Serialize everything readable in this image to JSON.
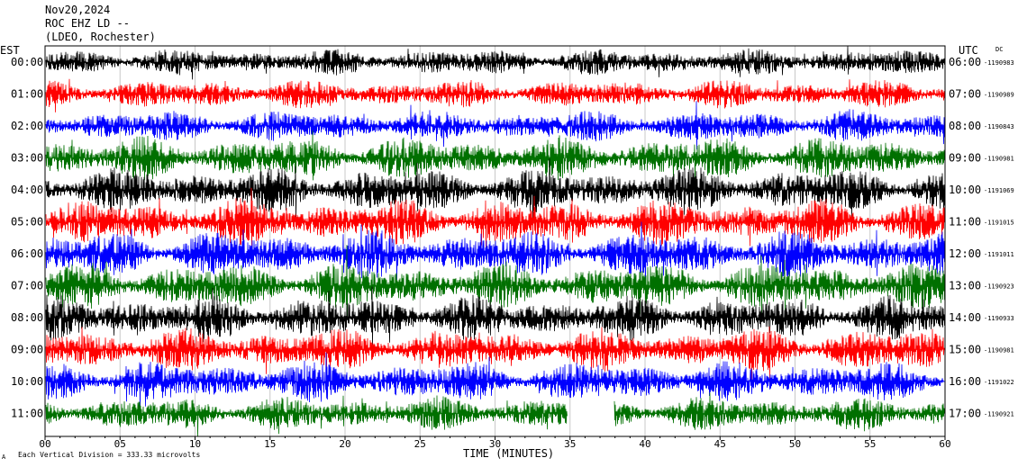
{
  "header": {
    "date": "Nov20,2024",
    "station": "ROC EHZ LD --",
    "network": "(LDEO, Rochester)"
  },
  "chart_data": {
    "type": "line",
    "title": "Nov20,2024",
    "left_timezone_label": "EST",
    "right_timezone_label": "UTC",
    "dc_label": "DC",
    "xlabel": "TIME (MINUTES)",
    "xlim": [
      0,
      60
    ],
    "x_ticks": [
      "00",
      "05",
      "10",
      "15",
      "20",
      "25",
      "30",
      "35",
      "40",
      "45",
      "50",
      "55",
      "60"
    ],
    "footer_note": "Each Vertical Division =  333.33 microvolts",
    "footer_mark": "A",
    "trace_colors": [
      "#000000",
      "#ff0000",
      "#0000ff",
      "#007000"
    ],
    "rows": [
      {
        "est": "00:00",
        "utc": "06:00",
        "dc": "-1190983",
        "color": "#000000",
        "level": 0.3
      },
      {
        "est": "01:00",
        "utc": "07:00",
        "dc": "-1190989",
        "color": "#ff0000",
        "level": 0.35
      },
      {
        "est": "02:00",
        "utc": "08:00",
        "dc": "-1190843",
        "color": "#0000ff",
        "level": 0.45
      },
      {
        "est": "03:00",
        "utc": "09:00",
        "dc": "-1190981",
        "color": "#007000",
        "level": 0.75
      },
      {
        "est": "04:00",
        "utc": "10:00",
        "dc": "-1191069",
        "color": "#000000",
        "level": 0.8
      },
      {
        "est": "05:00",
        "utc": "11:00",
        "dc": "-1191015",
        "color": "#ff0000",
        "level": 0.85
      },
      {
        "est": "06:00",
        "utc": "12:00",
        "dc": "-1191011",
        "color": "#0000ff",
        "level": 0.85
      },
      {
        "est": "07:00",
        "utc": "13:00",
        "dc": "-1190923",
        "color": "#007000",
        "level": 0.85
      },
      {
        "est": "08:00",
        "utc": "14:00",
        "dc": "-1190933",
        "color": "#000000",
        "level": 0.8
      },
      {
        "est": "09:00",
        "utc": "15:00",
        "dc": "-1190981",
        "color": "#ff0000",
        "level": 0.75
      },
      {
        "est": "10:00",
        "utc": "16:00",
        "dc": "-1191022",
        "color": "#0000ff",
        "level": 0.7
      },
      {
        "est": "11:00",
        "utc": "17:00",
        "dc": "-1190921",
        "color": "#007000",
        "level": 0.5,
        "gap_minutes": [
          34.8,
          37.9
        ]
      }
    ]
  }
}
